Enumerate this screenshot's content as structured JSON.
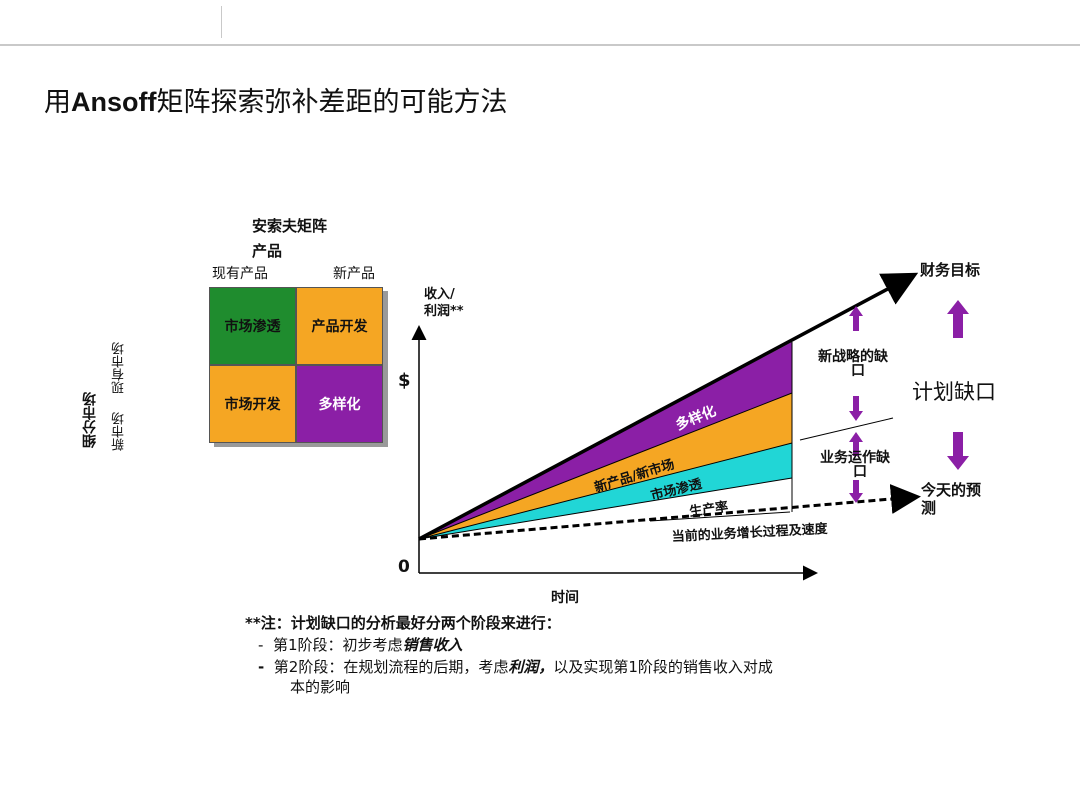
{
  "title": {
    "prefix": "用",
    "latin": "Ansoff",
    "suffix": "矩阵探索弥补差距的可能方法"
  },
  "matrix": {
    "title": "安索夫矩阵",
    "axis_top": "产品",
    "col_existing": "现有产品",
    "col_new": "新产品",
    "axis_left": "细分市场",
    "row_existing": "现有市场",
    "row_new": "新市场",
    "cells": [
      {
        "label": "市场渗透",
        "color": "#1f8c2e"
      },
      {
        "label": "产品开发",
        "color": "#f5a623"
      },
      {
        "label": "市场开发",
        "color": "#f5a623"
      },
      {
        "label": "多样化",
        "color": "#8b1fa6"
      }
    ]
  },
  "chart": {
    "y_label_line1": "收入/",
    "y_label_line2": "利润**",
    "dollar": "$",
    "zero": "0",
    "x_label": "时间",
    "target_label": "财务目标",
    "forecast_label_line1": "今天的预",
    "forecast_label_line2": "测",
    "bands": [
      {
        "label": "多样化",
        "color": "#8b1fa6"
      },
      {
        "label": "新产品/新市场",
        "color": "#f5a623"
      },
      {
        "label": "市场渗透",
        "color": "#21d6d6"
      },
      {
        "label": "生产率",
        "color": "#ffffff"
      }
    ],
    "current_label": "当前的业务增长过程及速度",
    "gap_new_strategy_line1": "新战略的缺",
    "gap_new_strategy_line2": "口",
    "gap_operations_line1": "业务运作缺",
    "gap_operations_line2": "口",
    "planning_gap": "计划缺口",
    "arrow_color": "#8b1fa6"
  },
  "notes": {
    "heading": "**注：计划缺口的分析最好分两个阶段来进行：",
    "item1_prefix": "第1阶段：初步考虑",
    "item1_bold": "销售收入",
    "item2_prefix": "第2阶段：在规划流程的后期，考虑",
    "item2_bold": "利润，",
    "item2_suffix": "以及实现第1阶段的销售收入对成",
    "item2_line2": "本的影响",
    "bullet": "-"
  }
}
